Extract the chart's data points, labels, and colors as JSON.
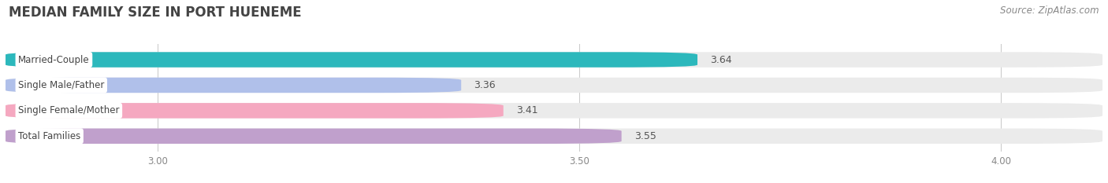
{
  "title": "MEDIAN FAMILY SIZE IN PORT HUENEME",
  "source": "Source: ZipAtlas.com",
  "categories": [
    "Married-Couple",
    "Single Male/Father",
    "Single Female/Mother",
    "Total Families"
  ],
  "values": [
    3.64,
    3.36,
    3.41,
    3.55
  ],
  "bar_colors": [
    "#2cb8bc",
    "#b0c0ea",
    "#f5a8c0",
    "#c0a0cc"
  ],
  "xlim_left": 2.82,
  "xlim_right": 4.12,
  "xstart": 2.82,
  "xticks": [
    3.0,
    3.5,
    4.0
  ],
  "bar_height": 0.6,
  "track_color": "#ebebeb",
  "background_color": "#ffffff",
  "plot_bg_color": "#ffffff",
  "grid_color": "#cccccc",
  "title_fontsize": 12,
  "source_fontsize": 8.5,
  "label_fontsize": 8.5,
  "value_fontsize": 9,
  "title_color": "#444444",
  "value_color": "#555555",
  "tick_color": "#888888"
}
